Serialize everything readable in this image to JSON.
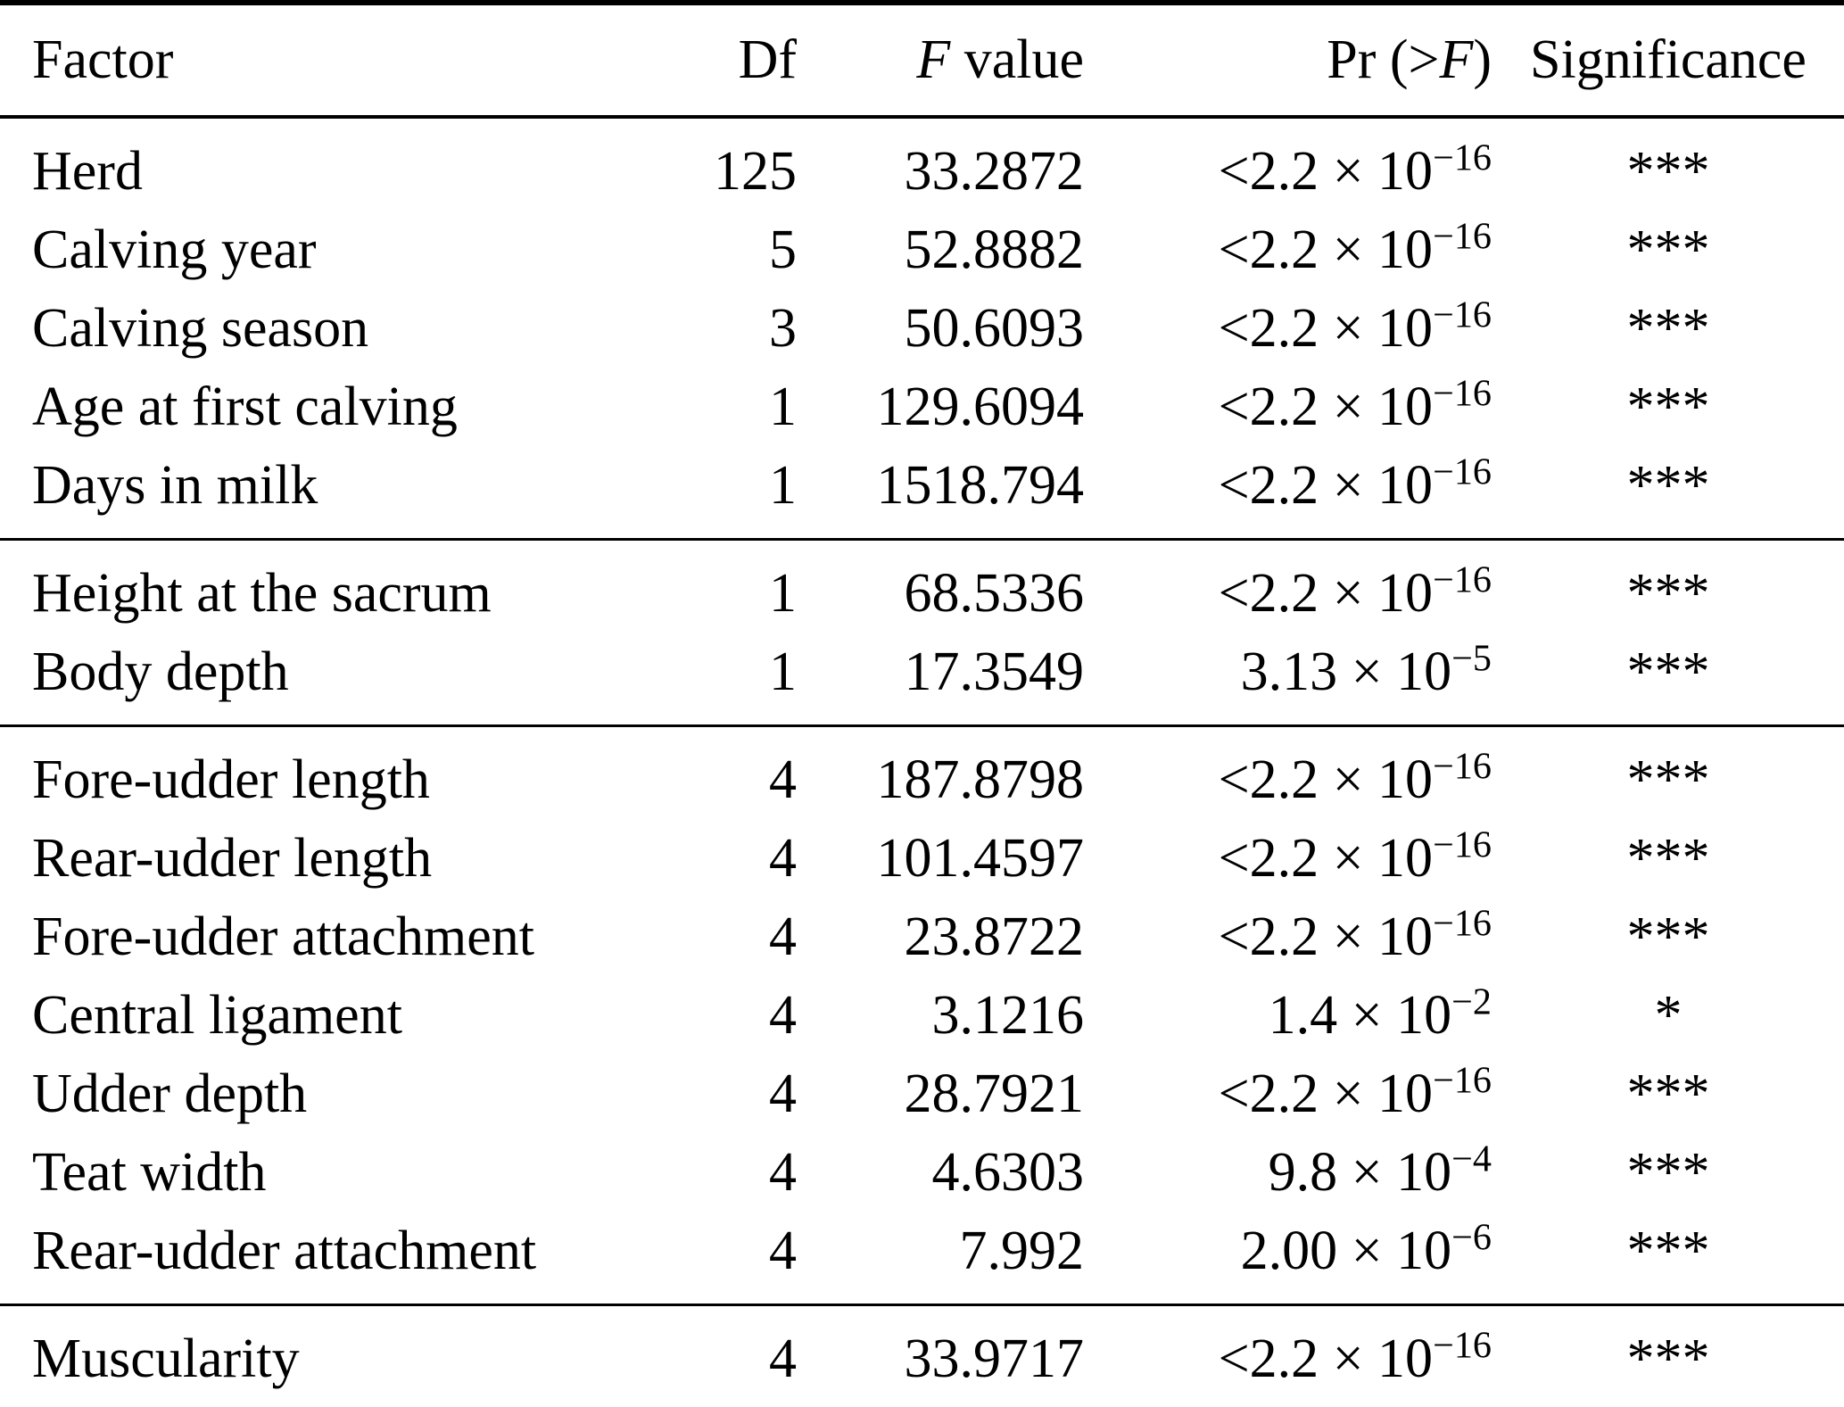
{
  "table": {
    "columns": {
      "factor": "Factor",
      "df": "Df",
      "f_italic": "F",
      "f_rest": " value",
      "pr_pre": "Pr (>",
      "pr_italic": "F",
      "pr_post": ")",
      "significance": "Significance"
    },
    "sections": [
      {
        "rows": [
          {
            "factor": "Herd",
            "df": "125",
            "f": "33.2872",
            "pr_base": "<2.2 × 10",
            "pr_exp": "−16",
            "sig": "***"
          },
          {
            "factor": "Calving year",
            "df": "5",
            "f": "52.8882",
            "pr_base": "<2.2 × 10",
            "pr_exp": "−16",
            "sig": "***"
          },
          {
            "factor": "Calving season",
            "df": "3",
            "f": "50.6093",
            "pr_base": "<2.2 × 10",
            "pr_exp": "−16",
            "sig": "***"
          },
          {
            "factor": "Age at first calving",
            "df": "1",
            "f": "129.6094",
            "pr_base": "<2.2 × 10",
            "pr_exp": "−16",
            "sig": "***"
          },
          {
            "factor": "Days in milk",
            "df": "1",
            "f": "1518.794",
            "pr_base": "<2.2 × 10",
            "pr_exp": "−16",
            "sig": "***"
          }
        ]
      },
      {
        "rows": [
          {
            "factor": "Height at the sacrum",
            "df": "1",
            "f": "68.5336",
            "pr_base": "<2.2 × 10",
            "pr_exp": "−16",
            "sig": "***"
          },
          {
            "factor": "Body depth",
            "df": "1",
            "f": "17.3549",
            "pr_base": "3.13 × 10",
            "pr_exp": "−5",
            "sig": "***"
          }
        ]
      },
      {
        "rows": [
          {
            "factor": "Fore-udder length",
            "df": "4",
            "f": "187.8798",
            "pr_base": "<2.2 × 10",
            "pr_exp": "−16",
            "sig": "***"
          },
          {
            "factor": "Rear-udder length",
            "df": "4",
            "f": "101.4597",
            "pr_base": "<2.2 × 10",
            "pr_exp": "−16",
            "sig": "***"
          },
          {
            "factor": "Fore-udder attachment",
            "df": "4",
            "f": "23.8722",
            "pr_base": "<2.2 × 10",
            "pr_exp": "−16",
            "sig": "***"
          },
          {
            "factor": "Central ligament",
            "df": "4",
            "f": "3.1216",
            "pr_base": "1.4 × 10",
            "pr_exp": "−2",
            "sig": "*"
          },
          {
            "factor": "Udder depth",
            "df": "4",
            "f": "28.7921",
            "pr_base": "<2.2 × 10",
            "pr_exp": "−16",
            "sig": "***"
          },
          {
            "factor": "Teat width",
            "df": "4",
            "f": "4.6303",
            "pr_base": "9.8 × 10",
            "pr_exp": "−4",
            "sig": "***"
          },
          {
            "factor": "Rear-udder attachment",
            "df": "4",
            "f": "7.992",
            "pr_base": "2.00 × 10",
            "pr_exp": "−6",
            "sig": "***"
          }
        ]
      },
      {
        "rows": [
          {
            "factor": "Muscularity",
            "df": "4",
            "f": "33.9717",
            "pr_base": "<2.2 × 10",
            "pr_exp": "−16",
            "sig": "***"
          }
        ]
      }
    ]
  },
  "colors": {
    "text": "#000000",
    "background": "#ffffff",
    "rule": "#000000"
  }
}
